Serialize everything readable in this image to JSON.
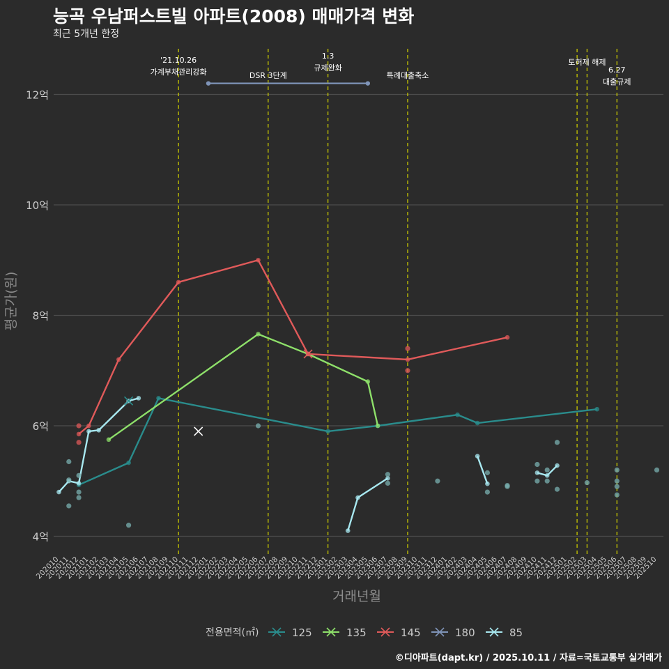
{
  "title": "능곡 우남퍼스트빌 아파트(2008) 매매가격 변화",
  "subtitle": "최근 5개년 한정",
  "footer": "©디아파트(dapt.kr) / 2025.10.11 / 자료=국토교통부 실거래가",
  "colors": {
    "bg": "#2b2b2b",
    "grid": "#4d4d4d",
    "axis_text": "#cccccc",
    "event_line": "#c8c800",
    "125": "#2a8c8c",
    "135": "#8ee06a",
    "145": "#e05a5a",
    "180": "#7f94b8",
    "85": "#a8e8f0"
  },
  "chart_data": {
    "type": "line",
    "title": "능곡 우남퍼스트빌 아파트(2008) 매매가격 변화",
    "xlabel": "거래년월",
    "ylabel": "평균가(원)",
    "ylim": [
      3.75,
      12.9
    ],
    "yticks": [
      {
        "value": 4,
        "label": "4억"
      },
      {
        "value": 6,
        "label": "6억"
      },
      {
        "value": 8,
        "label": "8억"
      },
      {
        "value": 10,
        "label": "10억"
      },
      {
        "value": 12,
        "label": "12억"
      }
    ],
    "x_months": [
      "202010",
      "202011",
      "202012",
      "202101",
      "202102",
      "202103",
      "202104",
      "202105",
      "202106",
      "202107",
      "202108",
      "202109",
      "202110",
      "202111",
      "202112",
      "202201",
      "202202",
      "202203",
      "202204",
      "202205",
      "202206",
      "202207",
      "202208",
      "202209",
      "202210",
      "202211",
      "202212",
      "202301",
      "202302",
      "202303",
      "202304",
      "202305",
      "202306",
      "202307",
      "202308",
      "202309",
      "202310",
      "202311",
      "202312",
      "202401",
      "202402",
      "202403",
      "202404",
      "202405",
      "202406",
      "202407",
      "202408",
      "202409",
      "202410",
      "202411",
      "202412",
      "202501",
      "202502",
      "202503",
      "202504",
      "202505",
      "202506",
      "202507",
      "202508",
      "202509",
      "202510"
    ],
    "legend_title": "전용면적(㎡)",
    "legend": [
      "125",
      "135",
      "145",
      "180",
      "85"
    ],
    "series": [
      {
        "name": "125",
        "points": [
          [
            2,
            4.93
          ],
          [
            7,
            5.33
          ],
          [
            10,
            6.5
          ],
          [
            27,
            5.9
          ],
          [
            32,
            6.0
          ],
          [
            40,
            6.2
          ],
          [
            42,
            6.05
          ],
          [
            54,
            6.3
          ]
        ]
      },
      {
        "name": "135",
        "points": [
          [
            5,
            5.75
          ],
          [
            20,
            7.66
          ],
          [
            25,
            7.3
          ],
          [
            31,
            6.8
          ],
          [
            32,
            6.0
          ]
        ]
      },
      {
        "name": "145",
        "points": [
          [
            2,
            5.85
          ],
          [
            3,
            6.0
          ],
          [
            6,
            7.2
          ],
          [
            12,
            8.6
          ],
          [
            20,
            9.0
          ],
          [
            25,
            7.3
          ],
          [
            35,
            7.2
          ],
          [
            45,
            7.6
          ]
        ]
      },
      {
        "name": "85",
        "segments": [
          [
            [
              0,
              4.8
            ],
            [
              1,
              5.0
            ],
            [
              2,
              4.96
            ],
            [
              3,
              5.9
            ],
            [
              4,
              5.92
            ],
            [
              7,
              6.45
            ],
            [
              8,
              6.5
            ]
          ],
          [
            [
              29,
              4.1
            ],
            [
              30,
              4.7
            ],
            [
              33,
              5.05
            ]
          ],
          [
            [
              42,
              5.45
            ],
            [
              43,
              4.95
            ]
          ],
          [
            [
              48,
              5.15
            ],
            [
              49,
              5.1
            ],
            [
              50,
              5.28
            ]
          ]
        ]
      }
    ],
    "scatter": [
      {
        "series": "125",
        "x": 1,
        "y": 5.35
      },
      {
        "series": "125",
        "x": 1,
        "y": 4.55
      },
      {
        "series": "125",
        "x": 1,
        "y": 5.02
      },
      {
        "series": "125",
        "x": 2,
        "y": 5.1
      },
      {
        "series": "125",
        "x": 2,
        "y": 4.8
      },
      {
        "series": "125",
        "x": 2,
        "y": 4.7
      },
      {
        "series": "125",
        "x": 7,
        "y": 4.2
      },
      {
        "series": "125",
        "x": 20,
        "y": 6.0
      },
      {
        "series": "125",
        "x": 33,
        "y": 5.12
      },
      {
        "series": "125",
        "x": 33,
        "y": 4.96
      },
      {
        "series": "125",
        "x": 38,
        "y": 5.0
      },
      {
        "series": "125",
        "x": 43,
        "y": 5.15
      },
      {
        "series": "125",
        "x": 43,
        "y": 4.8
      },
      {
        "series": "125",
        "x": 45,
        "y": 4.9
      },
      {
        "series": "125",
        "x": 45,
        "y": 4.92
      },
      {
        "series": "125",
        "x": 48,
        "y": 5.3
      },
      {
        "series": "125",
        "x": 48,
        "y": 5.0
      },
      {
        "series": "125",
        "x": 49,
        "y": 5.0
      },
      {
        "series": "125",
        "x": 49,
        "y": 5.2
      },
      {
        "series": "125",
        "x": 50,
        "y": 5.7
      },
      {
        "series": "125",
        "x": 50,
        "y": 4.85
      },
      {
        "series": "125",
        "x": 53,
        "y": 4.97
      },
      {
        "series": "125",
        "x": 56,
        "y": 5.2
      },
      {
        "series": "125",
        "x": 56,
        "y": 5.0
      },
      {
        "series": "125",
        "x": 56,
        "y": 4.9
      },
      {
        "series": "125",
        "x": 56,
        "y": 4.75
      },
      {
        "series": "125",
        "x": 60,
        "y": 5.2
      },
      {
        "series": "145",
        "x": 2,
        "y": 6.0
      },
      {
        "series": "145",
        "x": 2,
        "y": 5.7
      },
      {
        "series": "145",
        "x": 35,
        "y": 7.4
      },
      {
        "series": "145",
        "x": 35,
        "y": 7.0
      }
    ],
    "cross_markers": [
      {
        "series": "125",
        "x": 7,
        "y": 6.45
      },
      {
        "series": "180",
        "x": 14,
        "y": 5.9
      },
      {
        "series": "145",
        "x": 25,
        "y": 7.3
      }
    ],
    "range_marker": {
      "series": "180",
      "x_start": 15,
      "x_end": 31,
      "y": 12.2
    },
    "events": [
      {
        "x": 12,
        "lines": [
          "'21.10.26",
          "가계부채관리강화"
        ],
        "label_top": 90
      },
      {
        "x": 21,
        "lines": [
          "DSR 3단계"
        ],
        "label_top": 112
      },
      {
        "x": 27,
        "lines": [
          "1.3",
          "규제완화"
        ],
        "label_top": 84
      },
      {
        "x": 35,
        "lines": [
          "특례대출축소"
        ],
        "label_top": 112
      },
      {
        "x": 52,
        "lines": [],
        "label_top": 0
      },
      {
        "x": 53,
        "lines": [
          "토허제 해제"
        ],
        "label_top": 93
      },
      {
        "x": 56,
        "lines": [
          "6.27",
          "대출규제"
        ],
        "label_top": 104
      }
    ]
  }
}
